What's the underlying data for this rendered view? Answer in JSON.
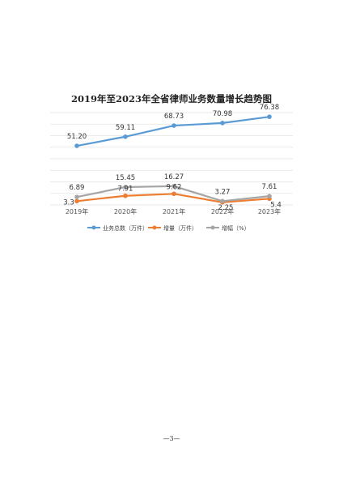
{
  "chart_data": {
    "type": "line",
    "title": "2019年至2023年全省律师业务数量增长趋势图",
    "categories": [
      "2019年",
      "2020年",
      "2021年",
      "2022年",
      "2023年"
    ],
    "series": [
      {
        "name": "业务总数（万件）",
        "color": "#5b9bd5",
        "values": [
          51.2,
          59.11,
          68.73,
          70.98,
          76.38
        ],
        "labels": [
          "51.20",
          "59.11",
          "68.73",
          "70.98",
          "76.38"
        ]
      },
      {
        "name": "增量（万件）",
        "color": "#ed7d31",
        "values": [
          3.3,
          7.91,
          9.62,
          2.25,
          5.4
        ],
        "labels": [
          "3.3",
          "7.91",
          "9.62",
          "2.25",
          "5.4"
        ]
      },
      {
        "name": "增幅（%）",
        "color": "#a5a5a5",
        "values": [
          6.89,
          15.45,
          16.27,
          3.27,
          7.61
        ],
        "labels": [
          "6.89",
          "15.45",
          "16.27",
          "3.27",
          "7.61"
        ]
      }
    ],
    "ylim": [
      0,
      80
    ],
    "grid": true,
    "legend": "bottom"
  },
  "page": {
    "number": "—3—"
  }
}
